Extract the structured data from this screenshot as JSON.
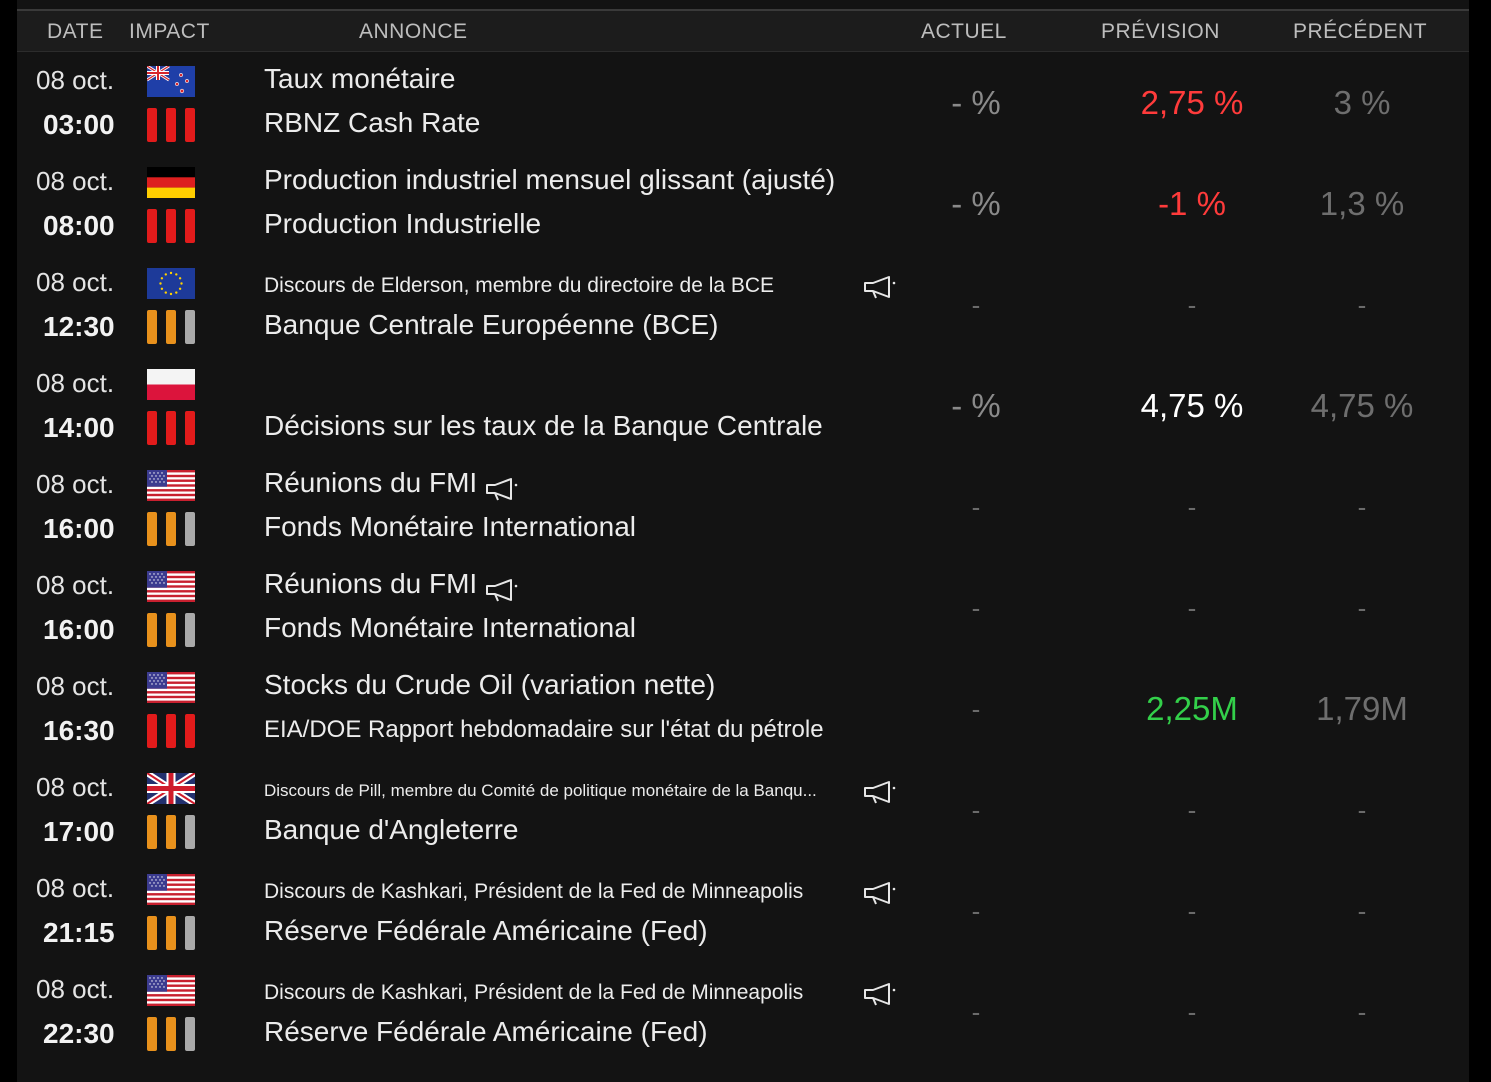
{
  "header": {
    "date": "DATE",
    "impact": "IMPACT",
    "annonce": "ANNONCE",
    "actuel": "ACTUEL",
    "prevision": "PRÉVISION",
    "precedent": "PRÉCÉDENT"
  },
  "colors": {
    "impact_high": "#e21b1b",
    "impact_medium": "#e8911c",
    "impact_low": "#a9a9a9",
    "forecast_negative": "#ff3b3b",
    "forecast_positive": "#33d04a",
    "forecast_neutral": "#ffffff"
  },
  "rows": [
    {
      "date": "08 oct.",
      "time": "03:00",
      "flag": "new-zealand",
      "impact": [
        "high",
        "high",
        "high"
      ],
      "title": "Taux monétaire",
      "subtitle": "RBNZ Cash Rate",
      "speech": false,
      "actuel": "- %",
      "prevision": "2,75 %",
      "prevision_color": "#ff3b3b",
      "precedent": "3 %"
    },
    {
      "date": "08 oct.",
      "time": "08:00",
      "flag": "germany",
      "impact": [
        "high",
        "high",
        "high"
      ],
      "title": "Production industriel mensuel glissant (ajusté)",
      "subtitle": "Production Industrielle",
      "speech": false,
      "actuel": "- %",
      "prevision": "-1 %",
      "prevision_color": "#ff3b3b",
      "precedent": "1,3 %"
    },
    {
      "date": "08 oct.",
      "time": "12:30",
      "flag": "european-union",
      "impact": [
        "medium",
        "medium",
        "low"
      ],
      "title": "Discours de Elderson, membre du directoire de la BCE",
      "subtitle": "Banque Centrale Européenne (BCE)",
      "speech": true,
      "actuel": "-",
      "prevision": "-",
      "prevision_color": "#6b6b6b",
      "precedent": "-"
    },
    {
      "date": "08 oct.",
      "time": "14:00",
      "flag": "poland",
      "impact": [
        "high",
        "high",
        "high"
      ],
      "title": "",
      "subtitle": "Décisions sur les taux de la Banque Centrale",
      "speech": false,
      "actuel": "- %",
      "prevision": "4,75 %",
      "prevision_color": "#ffffff",
      "precedent": "4,75 %"
    },
    {
      "date": "08 oct.",
      "time": "16:00",
      "flag": "united-states",
      "impact": [
        "medium",
        "medium",
        "low"
      ],
      "title": "Réunions du FMI",
      "subtitle": "Fonds Monétaire International",
      "speech": true,
      "actuel": "-",
      "prevision": "-",
      "prevision_color": "#6b6b6b",
      "precedent": "-"
    },
    {
      "date": "08 oct.",
      "time": "16:00",
      "flag": "united-states",
      "impact": [
        "medium",
        "medium",
        "low"
      ],
      "title": "Réunions du FMI",
      "subtitle": "Fonds Monétaire International",
      "speech": true,
      "actuel": "-",
      "prevision": "-",
      "prevision_color": "#6b6b6b",
      "precedent": "-"
    },
    {
      "date": "08 oct.",
      "time": "16:30",
      "flag": "united-states",
      "impact": [
        "high",
        "high",
        "high"
      ],
      "title": "Stocks du Crude Oil (variation nette)",
      "subtitle": "EIA/DOE Rapport hebdomadaire sur l'état du pétrole",
      "speech": false,
      "actuel": "-",
      "prevision": "2,25M",
      "prevision_color": "#33d04a",
      "precedent": "1,79M"
    },
    {
      "date": "08 oct.",
      "time": "17:00",
      "flag": "united-kingdom",
      "impact": [
        "medium",
        "medium",
        "low"
      ],
      "title": "Discours de Pill, membre du Comité de politique monétaire de la Banqu...",
      "subtitle": "Banque d'Angleterre",
      "speech": true,
      "actuel": "-",
      "prevision": "-",
      "prevision_color": "#6b6b6b",
      "precedent": "-"
    },
    {
      "date": "08 oct.",
      "time": "21:15",
      "flag": "united-states",
      "impact": [
        "medium",
        "medium",
        "low"
      ],
      "title": "Discours de Kashkari, Président de la Fed de Minneapolis",
      "subtitle": "Réserve Fédérale Américaine (Fed)",
      "speech": true,
      "actuel": "-",
      "prevision": "-",
      "prevision_color": "#6b6b6b",
      "precedent": "-"
    },
    {
      "date": "08 oct.",
      "time": "22:30",
      "flag": "united-states",
      "impact": [
        "medium",
        "medium",
        "low"
      ],
      "title": "Discours de Kashkari, Président de la Fed de Minneapolis",
      "subtitle": "Réserve Fédérale Américaine (Fed)",
      "speech": true,
      "actuel": "-",
      "prevision": "-",
      "prevision_color": "#6b6b6b",
      "precedent": "-"
    }
  ]
}
